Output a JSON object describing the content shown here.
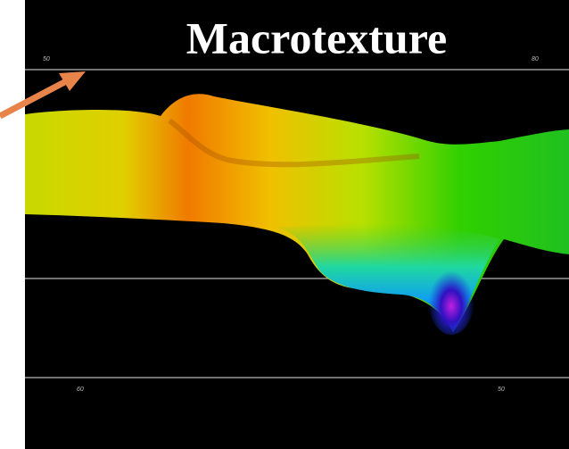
{
  "title": "Macrotexture",
  "axis_labels": [
    "50",
    "80",
    "60",
    "50"
  ]
}
